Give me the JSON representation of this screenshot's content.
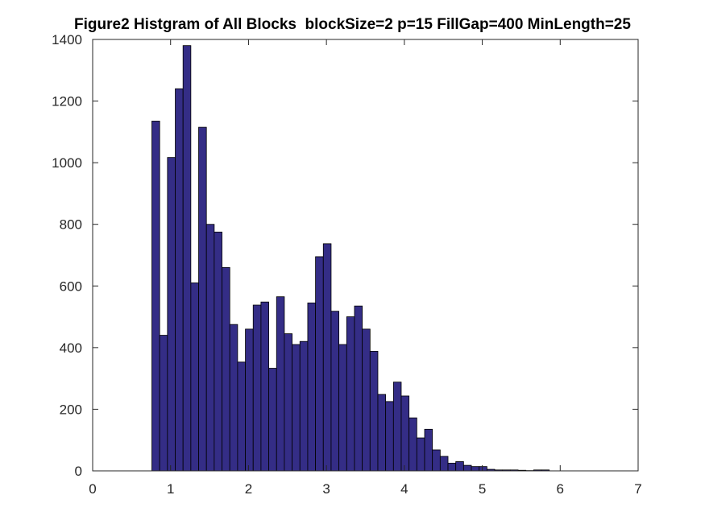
{
  "chart_data": {
    "type": "bar",
    "title": "Figure2 Histgram of All Blocks  blockSize=2 p=15 FillGap=400 MinLength=25",
    "xlabel": "",
    "ylabel": "",
    "xlim": [
      0,
      7
    ],
    "ylim": [
      0,
      1400
    ],
    "xticks": [
      "0",
      "1",
      "2",
      "3",
      "4",
      "5",
      "6",
      "7"
    ],
    "yticks": [
      "0",
      "200",
      "400",
      "600",
      "800",
      "1000",
      "1200",
      "1400"
    ],
    "grid": false,
    "legend": "none",
    "bar_color": "#342D86",
    "edge_color": "#000000",
    "bins": {
      "start": 0.76,
      "width": 0.1,
      "values": [
        1135,
        440,
        1017,
        1240,
        1380,
        610,
        1115,
        800,
        775,
        660,
        475,
        353,
        460,
        538,
        548,
        333,
        565,
        445,
        410,
        420,
        545,
        695,
        737,
        518,
        410,
        500,
        535,
        460,
        388,
        248,
        225,
        288,
        243,
        172,
        107,
        135,
        68,
        47,
        25,
        30,
        18,
        14,
        14,
        5,
        3,
        3,
        3,
        2,
        1,
        3,
        3,
        0
      ]
    }
  }
}
